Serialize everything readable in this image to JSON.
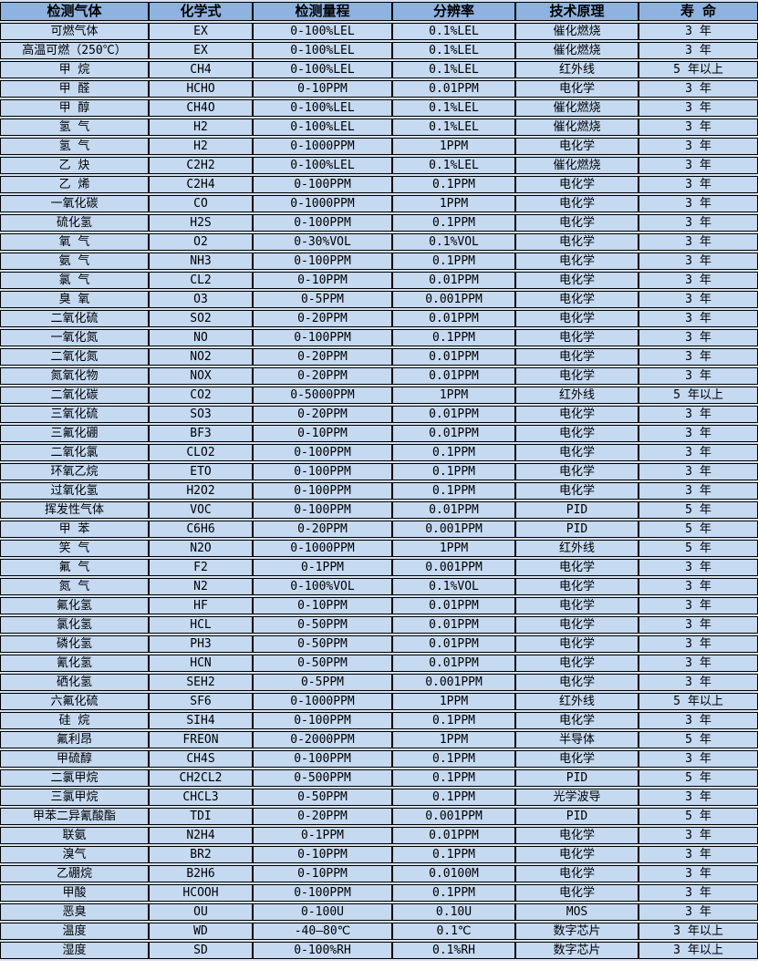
{
  "table": {
    "title": "gas-detector-specification-table",
    "columns": [
      "检测气体",
      "化学式",
      "检测量程",
      "分辨率",
      "技术原理",
      "寿 命"
    ],
    "colors": {
      "header_bg": "#8eb3e0",
      "row_bg": "#c5d9f1",
      "gap_bg": "#d6e2f2",
      "grid": "#000000",
      "text": "#000000"
    },
    "rows": [
      [
        "可燃气体",
        "EX",
        "0-100%LEL",
        "0.1%LEL",
        "催化燃烧",
        "3 年"
      ],
      [
        "高温可燃（250℃）",
        "EX",
        "0-100%LEL",
        "0.1%LEL",
        "催化燃烧",
        "3 年"
      ],
      [
        "甲 烷",
        "CH4",
        "0-100%LEL",
        "0.1%LEL",
        "红外线",
        "5 年以上"
      ],
      [
        "甲 醛",
        "HCHO",
        "0-10PPM",
        "0.01PPM",
        "电化学",
        "3 年"
      ],
      [
        "甲 醇",
        "CH4O",
        "0-100%LEL",
        "0.1%LEL",
        "催化燃烧",
        "3 年"
      ],
      [
        "氢 气",
        "H2",
        "0-100%LEL",
        "0.1%LEL",
        "催化燃烧",
        "3 年"
      ],
      [
        "氢 气",
        "H2",
        "0-1000PPM",
        "1PPM",
        "电化学",
        "3 年"
      ],
      [
        "乙 炔",
        "C2H2",
        "0-100%LEL",
        "0.1%LEL",
        "催化燃烧",
        "3 年"
      ],
      [
        "乙 烯",
        "C2H4",
        "0-100PPM",
        "0.1PPM",
        "电化学",
        "3 年"
      ],
      [
        "一氧化碳",
        "CO",
        "0-1000PPM",
        "1PPM",
        "电化学",
        "3 年"
      ],
      [
        "硫化氢",
        "H2S",
        "0-100PPM",
        "0.1PPM",
        "电化学",
        "3 年"
      ],
      [
        "氧 气",
        "O2",
        "0-30%VOL",
        "0.1%VOL",
        "电化学",
        "3 年"
      ],
      [
        "氨 气",
        "NH3",
        "0-100PPM",
        "0.1PPM",
        "电化学",
        "3 年"
      ],
      [
        "氯 气",
        "CL2",
        "0-10PPM",
        "0.01PPM",
        "电化学",
        "3 年"
      ],
      [
        "臭 氧",
        "O3",
        "0-5PPM",
        "0.001PPM",
        "电化学",
        "3 年"
      ],
      [
        "二氧化硫",
        "SO2",
        "0-20PPM",
        "0.01PPM",
        "电化学",
        "3 年"
      ],
      [
        "一氧化氮",
        "NO",
        "0-100PPM",
        "0.1PPM",
        "电化学",
        "3 年"
      ],
      [
        "二氧化氮",
        "NO2",
        "0-20PPM",
        "0.01PPM",
        "电化学",
        "3 年"
      ],
      [
        "氮氧化物",
        "NOX",
        "0-20PPM",
        "0.01PPM",
        "电化学",
        "3 年"
      ],
      [
        "二氧化碳",
        "CO2",
        "0-5000PPM",
        "1PPM",
        "红外线",
        "5 年以上"
      ],
      [
        "三氧化硫",
        "SO3",
        "0-20PPM",
        "0.01PPM",
        "电化学",
        "3 年"
      ],
      [
        "三氟化硼",
        "BF3",
        "0-10PPM",
        "0.01PPM",
        "电化学",
        "3 年"
      ],
      [
        "二氧化氯",
        "CLO2",
        "0-100PPM",
        "0.1PPM",
        "电化学",
        "3 年"
      ],
      [
        "环氧乙烷",
        "ETO",
        "0-100PPM",
        "0.1PPM",
        "电化学",
        "3 年"
      ],
      [
        "过氧化氢",
        "H2O2",
        "0-100PPM",
        "0.1PPM",
        "电化学",
        "3 年"
      ],
      [
        "挥发性气体",
        "VOC",
        "0-100PPM",
        "0.01PPM",
        "PID",
        "5 年"
      ],
      [
        "甲 苯",
        "C6H6",
        "0-20PPM",
        "0.001PPM",
        "PID",
        "5 年"
      ],
      [
        "笑 气",
        "N2O",
        "0-1000PPM",
        "1PPM",
        "红外线",
        "5 年"
      ],
      [
        "氟 气",
        "F2",
        "0-1PPM",
        "0.001PPM",
        "电化学",
        "3 年"
      ],
      [
        "氮 气",
        "N2",
        "0-100%VOL",
        "0.1%VOL",
        "电化学",
        "3 年"
      ],
      [
        "氟化氢",
        "HF",
        "0-10PPM",
        "0.01PPM",
        "电化学",
        "3 年"
      ],
      [
        "氯化氢",
        "HCL",
        "0-50PPM",
        "0.01PPM",
        "电化学",
        "3 年"
      ],
      [
        "磷化氢",
        "PH3",
        "0-50PPM",
        "0.01PPM",
        "电化学",
        "3 年"
      ],
      [
        "氰化氢",
        "HCN",
        "0-50PPM",
        "0.01PPM",
        "电化学",
        "3 年"
      ],
      [
        "硒化氢",
        "SEH2",
        "0-5PPM",
        "0.001PPM",
        "电化学",
        "3 年"
      ],
      [
        "六氟化硫",
        "SF6",
        "0-1000PPM",
        "1PPM",
        "红外线",
        "5 年以上"
      ],
      [
        "硅 烷",
        "SIH4",
        "0-100PPM",
        "0.1PPM",
        "电化学",
        "3 年"
      ],
      [
        "氟利昂",
        "FREON",
        "0-2000PPM",
        "1PPM",
        "半导体",
        "5 年"
      ],
      [
        "甲硫醇",
        "CH4S",
        "0-100PPM",
        "0.1PPM",
        "电化学",
        "3 年"
      ],
      [
        "二氯甲烷",
        "CH2CL2",
        "0-500PPM",
        "0.1PPM",
        "PID",
        "5 年"
      ],
      [
        "三氯甲烷",
        "CHCL3",
        "0-50PPM",
        "0.1PPM",
        "光学波导",
        "3 年"
      ],
      [
        "甲苯二异氰酸酯",
        "TDI",
        "0-20PPM",
        "0.001PPM",
        "PID",
        "5 年"
      ],
      [
        "联氨",
        "N2H4",
        "0-1PPM",
        "0.01PPM",
        "电化学",
        "3 年"
      ],
      [
        "溴气",
        "BR2",
        "0-10PPM",
        "0.1PPM",
        "电化学",
        "3 年"
      ],
      [
        "乙硼烷",
        "B2H6",
        "0-10PPM",
        "0.0100M",
        "电化学",
        "3 年"
      ],
      [
        "甲酸",
        "HCOOH",
        "0-100PPM",
        "0.1PPM",
        "电化学",
        "3 年"
      ],
      [
        "恶臭",
        "OU",
        "0-100U",
        "0.10U",
        "MOS",
        "3 年"
      ],
      [
        "温度",
        "WD",
        "-40—80℃",
        "0.1℃",
        "数字芯片",
        "3 年以上"
      ],
      [
        "湿度",
        "SD",
        "0-100%RH",
        "0.1%RH",
        "数字芯片",
        "3 年以上"
      ]
    ],
    "column_keys": [
      "gas",
      "formula",
      "range",
      "resolution",
      "principle",
      "lifetime"
    ]
  }
}
